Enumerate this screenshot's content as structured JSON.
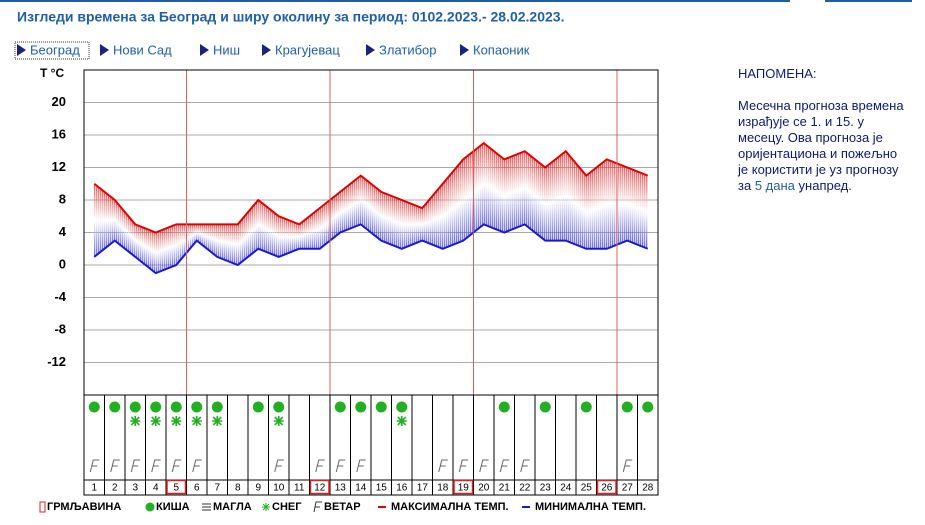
{
  "header": {
    "title": "Изгледи времена за Београд и ширу околину за период: 0102.2023.- 28.02.2023."
  },
  "links": [
    "Београд",
    "Нови Сад",
    "Ниш",
    "Крагујевац",
    "Златибор",
    "Копаоник"
  ],
  "note": {
    "title": "НАПОМЕНА:",
    "text_before": "Месечна прогноза времена израђује се 1. и 15. у месецу. Ова прогноза је оријентациона и пожељно је користити је уз прогнозу за",
    "link": "5 дана",
    "text_after": "унапред."
  },
  "chart_data": {
    "type": "band",
    "y_label": "T °C",
    "categories": [
      1,
      2,
      3,
      4,
      5,
      6,
      7,
      8,
      9,
      10,
      11,
      12,
      13,
      14,
      15,
      16,
      17,
      18,
      19,
      20,
      21,
      22,
      23,
      24,
      25,
      26,
      27,
      28
    ],
    "series": [
      {
        "name": "МАКСИМАЛНА ТЕМП.",
        "color": "#e00000",
        "values": [
          10,
          8,
          5,
          4,
          5,
          5,
          5,
          5,
          8,
          6,
          5,
          7,
          9,
          11,
          9,
          8,
          7,
          10,
          13,
          15,
          13,
          14,
          12,
          14,
          11,
          13,
          12,
          11
        ]
      },
      {
        "name": "МИНИМАЛНА ТЕМП.",
        "color": "#1a1acc",
        "values": [
          1,
          3,
          1,
          -1,
          0,
          3,
          1,
          0,
          2,
          1,
          2,
          2,
          4,
          5,
          3,
          2,
          3,
          2,
          3,
          5,
          4,
          5,
          3,
          3,
          2,
          2,
          3,
          2
        ]
      }
    ],
    "ylim": [
      -16,
      24
    ],
    "yticks": [
      -12,
      -8,
      -4,
      0,
      4,
      8,
      12,
      16,
      20
    ],
    "highlight_days": [
      5,
      12,
      19,
      26
    ],
    "rain_days": [
      1,
      2,
      3,
      4,
      5,
      6,
      7,
      9,
      10,
      13,
      14,
      15,
      16,
      21,
      23,
      25,
      27,
      28
    ],
    "snow_days": [
      3,
      4,
      5,
      6,
      7,
      10,
      16
    ],
    "wind_days": [
      1,
      2,
      3,
      4,
      5,
      6,
      10,
      12,
      13,
      14,
      18,
      19,
      20,
      21,
      22,
      27
    ],
    "legend_items": [
      "ГРМЉАВИНА",
      "КИША",
      "МАГЛА",
      "СНЕГ",
      "ВЕТАР"
    ]
  }
}
